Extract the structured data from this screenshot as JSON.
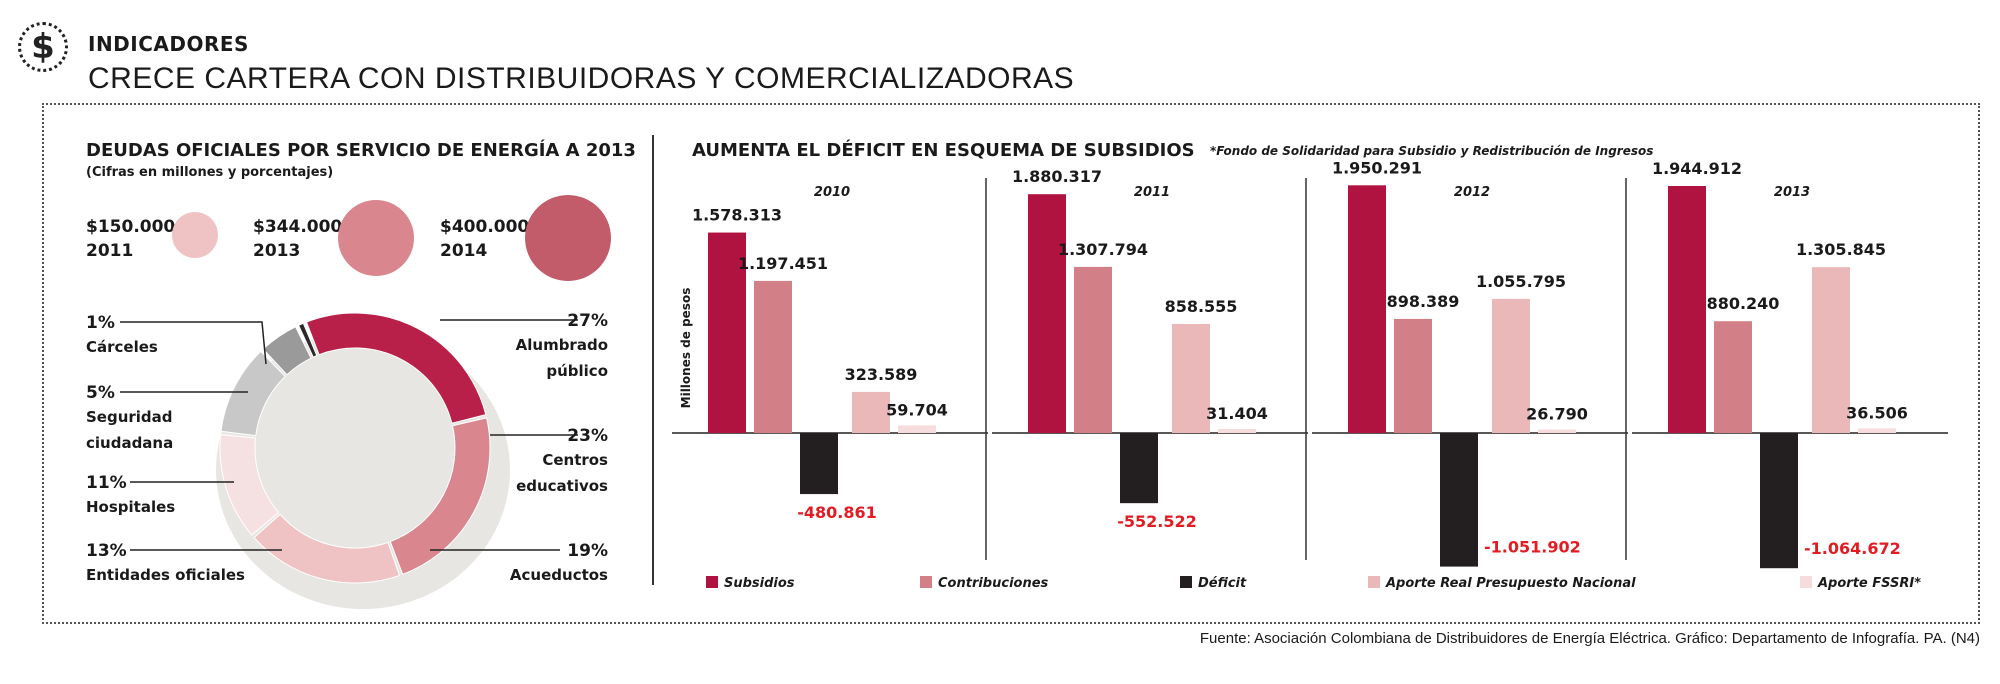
{
  "header": {
    "icon": "dollar-sign-icon",
    "icon_glyph": "$",
    "section": "INDICADORES",
    "title": "CRECE CARTERA CON DISTRIBUIDORAS Y COMERCIALIZADORAS"
  },
  "left_panel": {
    "title": "DEUDAS OFICIALES POR SERVICIO DE ENERGÍA A 2013",
    "subtitle": "(Cifras en millones y porcentajes)",
    "debts": [
      {
        "amount": "$150.000",
        "year": "2011",
        "color": "#efc2c4"
      },
      {
        "amount": "$344.000",
        "year": "2013",
        "color": "#d9868f"
      },
      {
        "amount": "$400.000",
        "year": "2014",
        "color": "#c25c6a"
      }
    ]
  },
  "right_panel": {
    "title": "AUMENTA EL DÉFICIT EN ESQUEMA DE SUBSIDIOS",
    "note": "*Fondo de Solidaridad para Subsidio y Redistribución de Ingresos",
    "ylabel": "Millones de pesos"
  },
  "source": "Fuente: Asociación Colombiana de Distribuidores de Energía Eléctrica. Gráfico: Departamento de Infografía. PA. (N4)",
  "chart_data": [
    {
      "type": "pie",
      "title": "DEUDAS OFICIALES POR SERVICIO DE ENERGÍA A 2013",
      "subtitle": "(Cifras en millones y porcentajes)",
      "slices": [
        {
          "label": "Alumbrado público",
          "pct_label": "27%",
          "value": 27,
          "color": "#b8204a"
        },
        {
          "label": "Centros educativos",
          "pct_label": "23%",
          "value": 23,
          "color": "#d9868f"
        },
        {
          "label": "Acueductos",
          "pct_label": "19%",
          "value": 19,
          "color": "#efc2c4"
        },
        {
          "label": "Entidades oficiales",
          "pct_label": "13%",
          "value": 13,
          "color": "#f6e1e2"
        },
        {
          "label": "Hospitales",
          "pct_label": "11%",
          "value": 11,
          "color": "#c8c8c8"
        },
        {
          "label": "Seguridad ciudadana",
          "pct_label": "5%",
          "value": 5,
          "color": "#9a9a9a"
        },
        {
          "label": "Cárceles",
          "pct_label": "1%",
          "value": 1,
          "color": "#2a2a2a"
        }
      ]
    },
    {
      "type": "bar",
      "title": "AUMENTA EL DÉFICIT EN ESQUEMA DE SUBSIDIOS",
      "ylabel": "Millones de pesos",
      "categories": [
        "2010",
        "2011",
        "2012",
        "2013"
      ],
      "series": [
        {
          "name": "Subsidios",
          "color": "#b0133f",
          "values": [
            1578313,
            1880317,
            1950291,
            1944912
          ],
          "labels": [
            "1.578.313",
            "1.880.317",
            "1.950.291",
            "1.944.912"
          ]
        },
        {
          "name": "Contribuciones",
          "color": "#d27f88",
          "values": [
            1197451,
            1307794,
            898389,
            880240
          ],
          "labels": [
            "1.197.451",
            "1.307.794",
            "898.389",
            "880.240"
          ]
        },
        {
          "name": "Déficit",
          "color": "#231f20",
          "values": [
            -480861,
            -552522,
            -1051902,
            -1064672
          ],
          "labels": [
            "-480.861",
            "-552.522",
            "-1.051.902",
            "-1.064.672"
          ],
          "label_color": "#e31b23"
        },
        {
          "name": "Aporte Real Presupuesto Nacional",
          "color": "#eab8b8",
          "values": [
            323589,
            858555,
            1055795,
            1305845
          ],
          "labels": [
            "323.589",
            "858.555",
            "1.055.795",
            "1.305.845"
          ]
        },
        {
          "name": "Aporte FSSRI*",
          "color": "#f6dcdc",
          "values": [
            59704,
            31404,
            26790,
            36506
          ],
          "labels": [
            "59.704",
            "31.404",
            "26.790",
            "36.506"
          ]
        }
      ]
    }
  ]
}
